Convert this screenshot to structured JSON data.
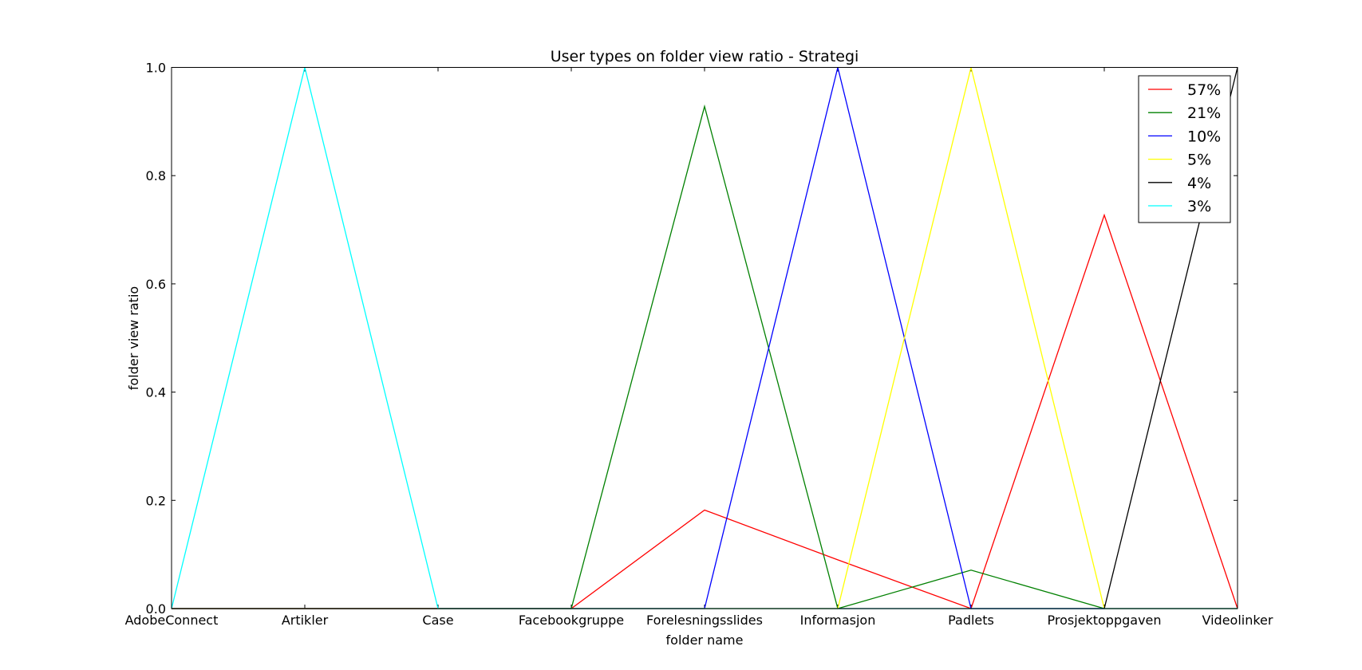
{
  "chart_data": {
    "type": "line",
    "title": "User types on folder view ratio - Strategi",
    "xlabel": "folder name",
    "ylabel": "folder view ratio",
    "categories": [
      "AdobeConnect",
      "Artikler",
      "Case",
      "Facebookgruppe",
      "Forelesningsslides",
      "Informasjon",
      "Padlets",
      "Prosjektoppgaven",
      "Videolinker"
    ],
    "ylim": [
      0.0,
      1.0
    ],
    "yticks": [
      "0.0",
      "0.2",
      "0.4",
      "0.6",
      "0.8",
      "1.0"
    ],
    "grid": false,
    "legend_position": "top-right",
    "series": [
      {
        "name": "57%",
        "color": "#ff0000",
        "values": [
          0,
          0,
          0,
          0,
          0.182,
          0.09,
          0,
          0.727,
          0
        ]
      },
      {
        "name": "21%",
        "color": "#008000",
        "values": [
          0,
          0,
          0,
          0,
          0.928,
          0,
          0.071,
          0,
          0
        ]
      },
      {
        "name": "10%",
        "color": "#0000ff",
        "values": [
          0,
          0,
          0,
          0,
          0,
          1.0,
          0,
          0,
          0
        ]
      },
      {
        "name": "5%",
        "color": "#ffff00",
        "values": [
          0,
          0,
          0,
          0,
          0,
          0,
          1.0,
          0,
          0
        ]
      },
      {
        "name": "4%",
        "color": "#000000",
        "values": [
          0,
          0,
          0,
          0,
          0,
          0,
          0,
          0,
          1.0
        ]
      },
      {
        "name": "3%",
        "color": "#00ffff",
        "values": [
          0,
          1.0,
          0,
          0,
          0,
          0,
          0,
          0,
          0
        ]
      }
    ]
  }
}
